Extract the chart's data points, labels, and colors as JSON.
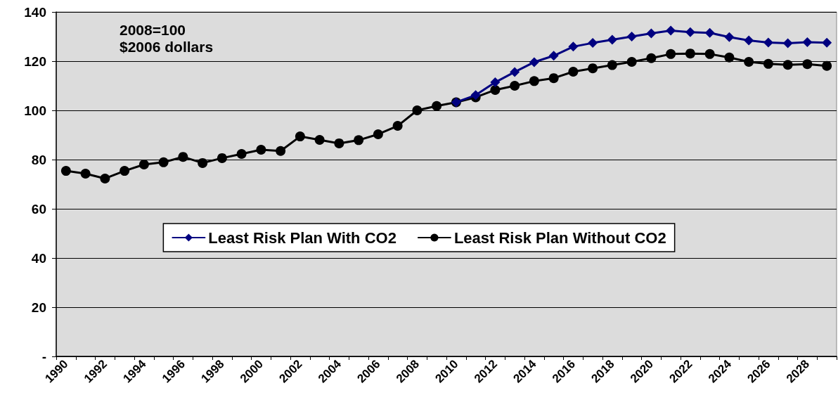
{
  "chart_data": {
    "type": "line",
    "categories": [
      "1990",
      null,
      "1992",
      null,
      "1994",
      null,
      "1996",
      null,
      "1998",
      null,
      "2000",
      null,
      "2002",
      null,
      "2004",
      null,
      "2006",
      null,
      "2008",
      null,
      "2010",
      null,
      "2012",
      null,
      "2014",
      null,
      "2016",
      null,
      "2018",
      null,
      "2020",
      null,
      "2022",
      null,
      "2024",
      null,
      "2026",
      null,
      "2028",
      null
    ],
    "series": [
      {
        "name": "Least Risk Plan With CO2",
        "color": "#000080",
        "marker": "diamond",
        "values": [
          null,
          null,
          null,
          null,
          null,
          null,
          null,
          null,
          null,
          null,
          null,
          null,
          null,
          null,
          null,
          null,
          null,
          null,
          null,
          null,
          103.3,
          106.2,
          111.4,
          115.6,
          119.6,
          122.2,
          125.9,
          127.4,
          128.7,
          130.0,
          131.3,
          132.4,
          131.8,
          131.5,
          129.8,
          128.4,
          127.6,
          127.3,
          127.7,
          127.5
        ]
      },
      {
        "name": "Least Risk Plan Without CO2",
        "color": "#000000",
        "marker": "circle",
        "values": [
          75.4,
          74.3,
          72.3,
          75.4,
          78.0,
          78.9,
          81.1,
          78.6,
          80.6,
          82.3,
          84.0,
          83.5,
          89.4,
          88.0,
          86.6,
          87.9,
          90.3,
          93.7,
          100,
          101.8,
          103.3,
          105.3,
          108.3,
          110.0,
          111.9,
          113.1,
          115.7,
          117.1,
          118.4,
          119.7,
          121.2,
          122.9,
          123.1,
          122.9,
          121.5,
          119.7,
          118.9,
          118.5,
          118.8,
          118.1
        ]
      }
    ],
    "ylim": [
      0,
      140
    ],
    "yticks": [
      {
        "value": 0,
        "label": "-"
      },
      20,
      40,
      60,
      80,
      100,
      120,
      140
    ],
    "grid": "y",
    "legend": "center",
    "line_style": "solid",
    "annotations": [
      "2008=100",
      "$2006 dollars"
    ]
  }
}
